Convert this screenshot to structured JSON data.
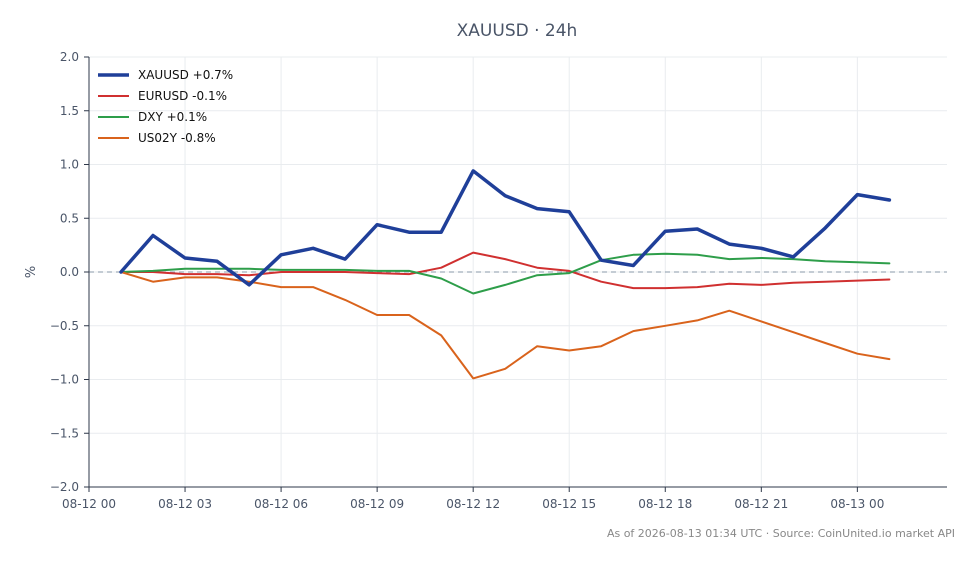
{
  "chart_data": {
    "type": "line",
    "title": "XAUUSD · 24h",
    "xlabel": "",
    "ylabel": "%",
    "ylim": [
      -2.0,
      2.0
    ],
    "yticks": [
      -2.0,
      -1.5,
      -1.0,
      -0.5,
      0.0,
      0.5,
      1.0,
      1.5,
      2.0
    ],
    "ytick_labels": [
      "−2.0",
      "−1.5",
      "−1.0",
      "−0.5",
      "0.0",
      "0.5",
      "1.0",
      "1.5",
      "2.0"
    ],
    "xlim": [
      "2026-08-12 00:00",
      "2026-08-13 02:48"
    ],
    "xticks": [
      "2026-08-12 00:00",
      "2026-08-12 03:00",
      "2026-08-12 06:00",
      "2026-08-12 09:00",
      "2026-08-12 12:00",
      "2026-08-12 15:00",
      "2026-08-12 18:00",
      "2026-08-12 21:00",
      "2026-08-13 00:00"
    ],
    "xtick_labels": [
      "08-12 00",
      "08-12 03",
      "08-12 06",
      "08-12 09",
      "08-12 12",
      "08-12 15",
      "08-12 18",
      "08-12 21",
      "08-13 00"
    ],
    "x": [
      "2026-08-12 01:00",
      "2026-08-12 02:00",
      "2026-08-12 03:00",
      "2026-08-12 04:00",
      "2026-08-12 05:00",
      "2026-08-12 06:00",
      "2026-08-12 07:00",
      "2026-08-12 08:00",
      "2026-08-12 09:00",
      "2026-08-12 10:00",
      "2026-08-12 11:00",
      "2026-08-12 12:00",
      "2026-08-12 13:00",
      "2026-08-12 14:00",
      "2026-08-12 15:00",
      "2026-08-12 16:00",
      "2026-08-12 17:00",
      "2026-08-12 18:00",
      "2026-08-12 19:00",
      "2026-08-12 20:00",
      "2026-08-12 21:00",
      "2026-08-12 22:00",
      "2026-08-12 23:00",
      "2026-08-13 00:00",
      "2026-08-13 01:00"
    ],
    "reference_line": 0.0,
    "grid": true,
    "legend_position": "top-left",
    "series": [
      {
        "name": "XAUUSD +0.7%",
        "color": "#1f3f99",
        "emphasis": true,
        "values": [
          0.0,
          0.34,
          0.13,
          0.1,
          -0.12,
          0.16,
          0.22,
          0.12,
          0.44,
          0.37,
          0.37,
          0.94,
          0.71,
          0.59,
          0.56,
          0.11,
          0.06,
          0.38,
          0.4,
          0.26,
          0.22,
          0.14,
          0.41,
          0.72,
          0.67
        ]
      },
      {
        "name": "EURUSD -0.1%",
        "color": "#d03030",
        "values": [
          0.0,
          0.0,
          -0.02,
          -0.02,
          -0.03,
          0.0,
          0.0,
          0.0,
          -0.01,
          -0.02,
          0.04,
          0.18,
          0.12,
          0.04,
          0.01,
          -0.09,
          -0.15,
          -0.15,
          -0.14,
          -0.11,
          -0.12,
          -0.1,
          -0.09,
          -0.08,
          -0.07
        ]
      },
      {
        "name": "DXY +0.1%",
        "color": "#2e9e4a",
        "values": [
          0.0,
          0.01,
          0.03,
          0.03,
          0.03,
          0.02,
          0.02,
          0.02,
          0.01,
          0.01,
          -0.06,
          -0.2,
          -0.12,
          -0.03,
          -0.01,
          0.11,
          0.16,
          0.17,
          0.16,
          0.12,
          0.13,
          0.12,
          0.1,
          0.09,
          0.08
        ]
      },
      {
        "name": "US02Y -0.8%",
        "color": "#d9631c",
        "values": [
          0.0,
          -0.09,
          -0.05,
          -0.05,
          -0.09,
          -0.14,
          -0.14,
          -0.26,
          -0.4,
          -0.4,
          -0.59,
          -0.99,
          -0.9,
          -0.69,
          -0.73,
          -0.69,
          -0.55,
          -0.5,
          -0.45,
          -0.36,
          -0.46,
          -0.56,
          -0.66,
          -0.76,
          -0.81
        ]
      }
    ]
  },
  "footer": "As of 2026-08-13 01:34 UTC · Source: CoinUnited.io market API"
}
